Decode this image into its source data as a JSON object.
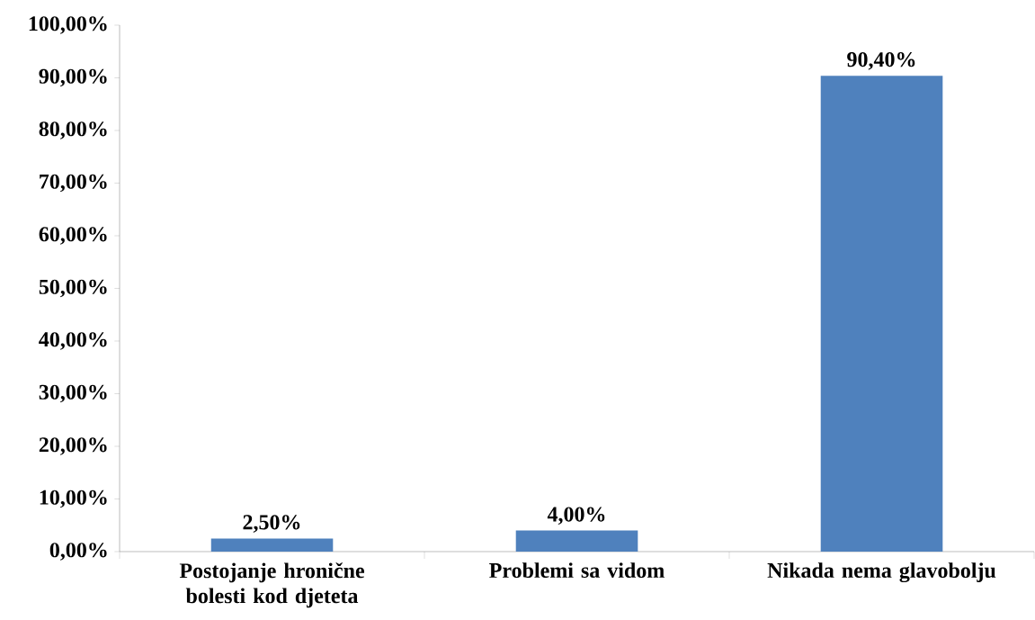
{
  "chart_data": {
    "type": "bar",
    "categories": [
      "Postojanje hronične bolesti kod djeteta",
      "Problemi sa vidom",
      "Nikada nema glavobolju"
    ],
    "values": [
      2.5,
      4.0,
      90.4
    ],
    "value_labels": [
      "2,50%",
      "4,00%",
      "90,40%"
    ],
    "color": "#4f81bd",
    "ylim": [
      0,
      100
    ],
    "yticks": [
      {
        "value": 0,
        "label": "0,00%"
      },
      {
        "value": 10,
        "label": "10,00%"
      },
      {
        "value": 20,
        "label": "20,00%"
      },
      {
        "value": 30,
        "label": "30,00%"
      },
      {
        "value": 40,
        "label": "40,00%"
      },
      {
        "value": 50,
        "label": "50,00%"
      },
      {
        "value": 60,
        "label": "60,00%"
      },
      {
        "value": 70,
        "label": "70,00%"
      },
      {
        "value": 80,
        "label": "80,00%"
      },
      {
        "value": 90,
        "label": "90,00%"
      },
      {
        "value": 100,
        "label": "100,00%"
      }
    ],
    "grid": false
  }
}
